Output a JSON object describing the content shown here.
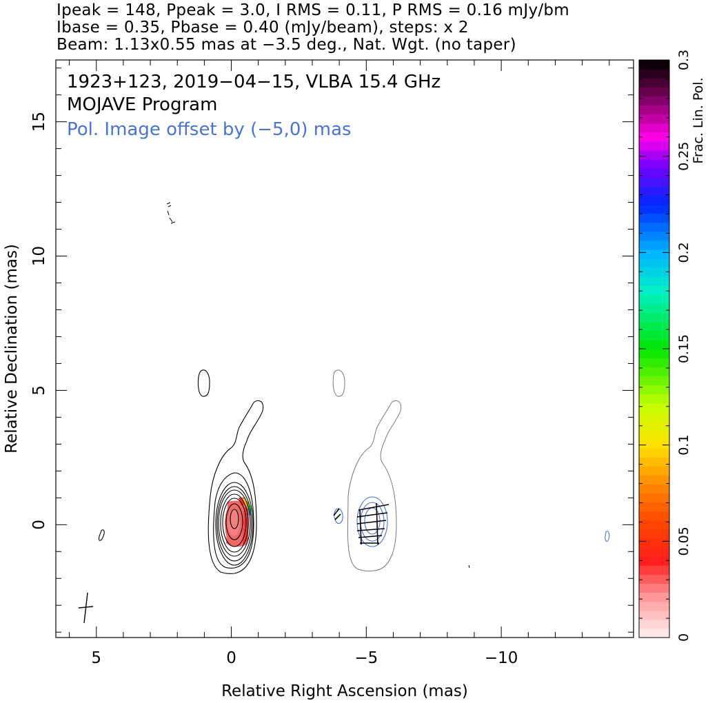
{
  "header": {
    "line1": "Ipeak = 148, Ppeak = 3.0, I RMS = 0.11, P RMS = 0.16 mJy/bm",
    "line2": "Ibase = 0.35, Pbase = 0.40 (mJy/beam), steps: x 2",
    "line3": "Beam: 1.13x0.55 mas at −3.5 deg., Nat. Wgt. (no taper)"
  },
  "chart_data": {
    "type": "contour",
    "annotations": {
      "source_line": "1923+123, 2019−04−15, VLBA 15.4 GHz",
      "program_line": "MOJAVE Program",
      "offset_note": "Pol. Image offset by (−5,0) mas"
    },
    "xlabel": "Relative Right Ascension (mas)",
    "ylabel": "Relative Declination (mas)",
    "xlim": [
      6.5,
      -14.9
    ],
    "ylim": [
      -4.2,
      17.3
    ],
    "x_ticks": [
      {
        "value": 5,
        "label": "5"
      },
      {
        "value": 0,
        "label": "0"
      },
      {
        "value": -5,
        "label": "−5"
      },
      {
        "value": -10,
        "label": "−10"
      }
    ],
    "y_ticks": [
      {
        "value": 0,
        "label": "0"
      },
      {
        "value": 5,
        "label": "5"
      },
      {
        "value": 10,
        "label": "10"
      },
      {
        "value": 15,
        "label": "15"
      }
    ],
    "colorbar": {
      "label": "Frac. Lin. Pol.",
      "range": [
        0,
        0.3
      ],
      "ticks": [
        {
          "value": 0,
          "label": "0"
        },
        {
          "value": 0.05,
          "label": "0.05"
        },
        {
          "value": 0.1,
          "label": "0.1"
        },
        {
          "value": 0.15,
          "label": "0.15"
        },
        {
          "value": 0.2,
          "label": "0.2"
        },
        {
          "value": 0.25,
          "label": "0.25"
        },
        {
          "value": 0.3,
          "label": "0.3"
        }
      ]
    },
    "stokes_i_contours": {
      "color": "#000000",
      "levels": 9,
      "peak_position": [
        0.05,
        -0.05
      ],
      "peak_mJy_per_beam": 148
    },
    "polarized_intensity_contours": {
      "color": "#4a74d0",
      "offset_mas": [
        -5,
        0
      ]
    },
    "fractional_polarization_core": {
      "center": [
        0.05,
        -0.1
      ],
      "range_shown": [
        0.0,
        0.2
      ]
    },
    "evpa_vectors": 10,
    "beam": {
      "major_mas": 1.13,
      "minor_mas": 0.55,
      "pa_deg": -3.5
    }
  }
}
